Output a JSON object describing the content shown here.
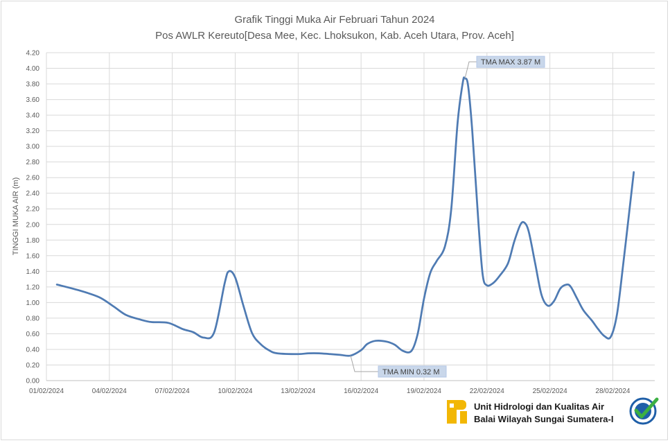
{
  "chart_data": {
    "type": "line",
    "title": "Grafik Tinggi Muka Air Februari Tahun 2024",
    "subtitle": "Pos AWLR Kereuto[Desa Mee, Kec. Lhoksukon, Kab. Aceh Utara, Prov. Aceh]",
    "ylabel": "TINGGI MUKA AIR (m)",
    "xlabel": "",
    "ylim": [
      0,
      4.2
    ],
    "ytick_step": 0.2,
    "xlim": [
      1,
      30
    ],
    "x_tick_days": [
      1,
      4,
      7,
      10,
      13,
      16,
      19,
      22,
      25,
      28
    ],
    "x_tick_labels": [
      "01/02/2024",
      "04/02/2024",
      "07/02/2024",
      "10/02/2024",
      "13/02/2024",
      "16/02/2024",
      "19/02/2024",
      "22/02/2024",
      "25/02/2024",
      "28/02/2024"
    ],
    "grid": true,
    "series": [
      {
        "color": "#4f7bb3",
        "points": [
          [
            1.5,
            1.23
          ],
          [
            2.5,
            1.16
          ],
          [
            3.5,
            1.07
          ],
          [
            4.2,
            0.95
          ],
          [
            4.8,
            0.84
          ],
          [
            5.5,
            0.78
          ],
          [
            6.0,
            0.75
          ],
          [
            6.8,
            0.74
          ],
          [
            7.5,
            0.66
          ],
          [
            8.0,
            0.62
          ],
          [
            8.5,
            0.55
          ],
          [
            9.0,
            0.62
          ],
          [
            9.5,
            1.25
          ],
          [
            9.7,
            1.4
          ],
          [
            10.0,
            1.32
          ],
          [
            10.4,
            0.95
          ],
          [
            10.8,
            0.61
          ],
          [
            11.2,
            0.47
          ],
          [
            11.6,
            0.39
          ],
          [
            12.0,
            0.35
          ],
          [
            13.0,
            0.34
          ],
          [
            13.5,
            0.35
          ],
          [
            14.0,
            0.35
          ],
          [
            14.5,
            0.34
          ],
          [
            15.0,
            0.33
          ],
          [
            15.5,
            0.32
          ],
          [
            16.0,
            0.39
          ],
          [
            16.3,
            0.47
          ],
          [
            16.7,
            0.51
          ],
          [
            17.2,
            0.5
          ],
          [
            17.6,
            0.46
          ],
          [
            18.0,
            0.38
          ],
          [
            18.4,
            0.38
          ],
          [
            18.7,
            0.6
          ],
          [
            19.0,
            1.05
          ],
          [
            19.3,
            1.38
          ],
          [
            19.6,
            1.53
          ],
          [
            20.0,
            1.72
          ],
          [
            20.3,
            2.2
          ],
          [
            20.6,
            3.3
          ],
          [
            20.85,
            3.82
          ],
          [
            20.95,
            3.87
          ],
          [
            21.1,
            3.78
          ],
          [
            21.3,
            3.2
          ],
          [
            21.6,
            2.0
          ],
          [
            21.8,
            1.35
          ],
          [
            22.0,
            1.22
          ],
          [
            22.3,
            1.25
          ],
          [
            22.6,
            1.34
          ],
          [
            23.0,
            1.5
          ],
          [
            23.3,
            1.78
          ],
          [
            23.6,
            2.0
          ],
          [
            23.8,
            2.02
          ],
          [
            24.0,
            1.9
          ],
          [
            24.3,
            1.5
          ],
          [
            24.6,
            1.1
          ],
          [
            24.9,
            0.96
          ],
          [
            25.2,
            1.02
          ],
          [
            25.5,
            1.18
          ],
          [
            25.8,
            1.23
          ],
          [
            26.0,
            1.2
          ],
          [
            26.3,
            1.05
          ],
          [
            26.6,
            0.9
          ],
          [
            27.0,
            0.77
          ],
          [
            27.3,
            0.66
          ],
          [
            27.6,
            0.57
          ],
          [
            27.9,
            0.56
          ],
          [
            28.2,
            0.85
          ],
          [
            28.5,
            1.5
          ],
          [
            28.8,
            2.2
          ],
          [
            29.0,
            2.67
          ]
        ]
      }
    ],
    "annotations": [
      {
        "text": "TMA MAX  3.87  M",
        "x": 20.95,
        "y": 3.87,
        "position": "upper-right"
      },
      {
        "text": "TMA MIN  0.32  M",
        "x": 15.5,
        "y": 0.32,
        "position": "lower-right"
      }
    ]
  },
  "footer": {
    "line1": "Unit Hidrologi dan Kualitas Air",
    "line2": "Balai Wilayah Sungai Sumatera-I",
    "logo_icon": "pupr-logo-icon",
    "badge_icon": "certified-badge-icon",
    "logo_color": "#f2b705",
    "badge_color": "#1f5fa8",
    "check_color": "#3cb043"
  }
}
